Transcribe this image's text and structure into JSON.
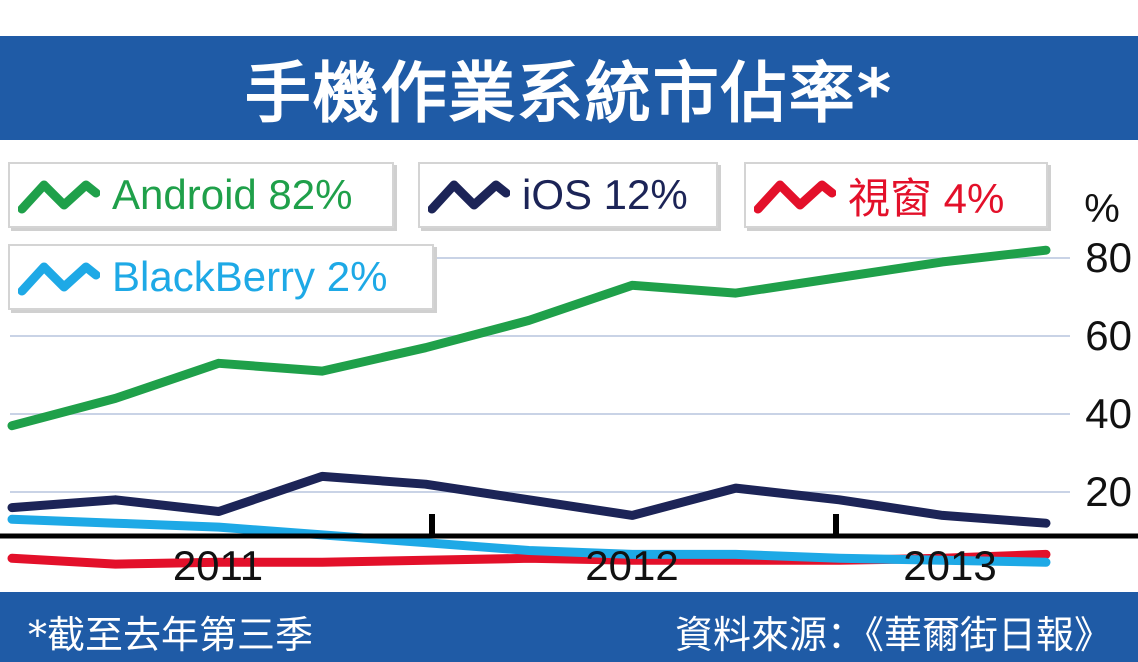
{
  "title": "手機作業系統市佔率*",
  "footnote": "*截至去年第三季",
  "source": "資料來源：《華爾街日報》",
  "chart_data": {
    "type": "line",
    "yunit": "%",
    "ylim": [
      0,
      88
    ],
    "yticks": [
      "20",
      "40",
      "60",
      "80"
    ],
    "year_labels": [
      "2011",
      "2012",
      "2013"
    ],
    "x": [
      0,
      1,
      2,
      3,
      4,
      5,
      6,
      7,
      8,
      9,
      10
    ],
    "series": [
      {
        "name": "Android",
        "label": "Android 82%",
        "color": "#1fa04a",
        "values": [
          37,
          44,
          53,
          51,
          57,
          64,
          73,
          71,
          75,
          79,
          82
        ]
      },
      {
        "name": "iOS",
        "label": "iOS 12%",
        "color": "#1c2457",
        "values": [
          16,
          18,
          15,
          24,
          22,
          18,
          14,
          21,
          18,
          14,
          12
        ]
      },
      {
        "name": "視窗",
        "label": "視窗 4%",
        "color": "#e3102a",
        "values": [
          3,
          1.5,
          2,
          2,
          2.5,
          3,
          2.5,
          2.5,
          2.5,
          3,
          4
        ]
      },
      {
        "name": "BlackBerry",
        "label": "BlackBerry 2%",
        "color": "#1ea9e6",
        "values": [
          13,
          12,
          11,
          9,
          7,
          5,
          4,
          4,
          3,
          2.5,
          2
        ]
      }
    ]
  }
}
